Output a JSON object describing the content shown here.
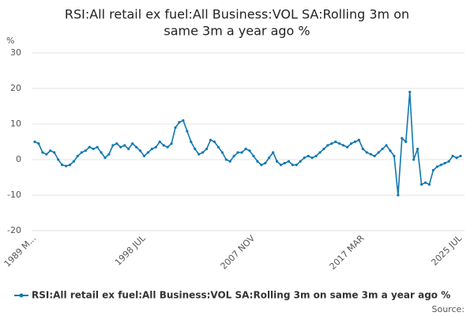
{
  "chart_data": {
    "type": "line",
    "title": [
      "RSI:All retail ex fuel:All Business:VOL SA:Rolling 3m on",
      "same 3m a year ago %"
    ],
    "y_label": "%",
    "source": "Source:",
    "categories": [
      "1989 M...",
      null,
      null,
      null,
      null,
      null,
      null,
      null,
      null,
      null,
      null,
      null,
      null,
      null,
      null,
      null,
      null,
      null,
      null,
      null,
      null,
      null,
      null,
      null,
      null,
      null,
      null,
      null,
      "1998 JUL",
      null,
      null,
      null,
      null,
      null,
      null,
      null,
      null,
      null,
      null,
      null,
      null,
      null,
      null,
      null,
      null,
      null,
      null,
      null,
      null,
      null,
      null,
      null,
      null,
      null,
      null,
      null,
      "2007 NOV",
      null,
      null,
      null,
      null,
      null,
      null,
      null,
      null,
      null,
      null,
      null,
      null,
      null,
      null,
      null,
      null,
      null,
      null,
      null,
      null,
      null,
      null,
      null,
      null,
      null,
      null,
      null,
      "2017 MAR",
      null,
      null,
      null,
      null,
      null,
      null,
      null,
      null,
      null,
      null,
      null,
      null,
      null,
      null,
      null,
      null,
      null,
      null,
      null,
      null,
      null,
      null,
      null,
      null,
      "2025 JUL"
    ],
    "series": [
      {
        "name": "RSI:All retail ex fuel:All Business:VOL SA:Rolling 3m on same 3m a year ago %",
        "color": "#1178b0",
        "values": [
          5,
          4.5,
          2,
          1.5,
          2.5,
          2,
          0,
          -1.5,
          -1.8,
          -1.5,
          -0.5,
          1,
          2,
          2.5,
          3.5,
          3,
          3.5,
          2,
          0.5,
          1.5,
          4,
          4.5,
          3.5,
          4,
          3,
          4.5,
          3.5,
          2.5,
          1,
          2,
          3,
          3.5,
          5,
          4,
          3.5,
          4.5,
          9,
          10.5,
          11,
          8,
          5,
          3,
          1.5,
          2,
          3,
          5.5,
          5,
          3.5,
          2,
          0,
          -0.5,
          1,
          2,
          2,
          3,
          2.5,
          1,
          -0.5,
          -1.5,
          -1,
          0.5,
          2,
          -0.5,
          -1.5,
          -1,
          -0.5,
          -1.5,
          -1.5,
          -0.5,
          0.5,
          1,
          0.5,
          1,
          2,
          3,
          4,
          4.5,
          5,
          4.5,
          4,
          3.5,
          4.5,
          5,
          5.5,
          3,
          2,
          1.5,
          1,
          2,
          3,
          4,
          2.5,
          1,
          -10,
          6,
          5,
          19,
          0,
          3,
          -7,
          -6.5,
          -7,
          -3,
          -2,
          -1.5,
          -1,
          -0.5,
          1,
          0.5,
          1
        ]
      }
    ],
    "ylim": [
      -20,
      30
    ],
    "yticks": [
      -20,
      -10,
      0,
      10,
      20,
      30
    ],
    "grid": true,
    "legend": "bottom"
  }
}
